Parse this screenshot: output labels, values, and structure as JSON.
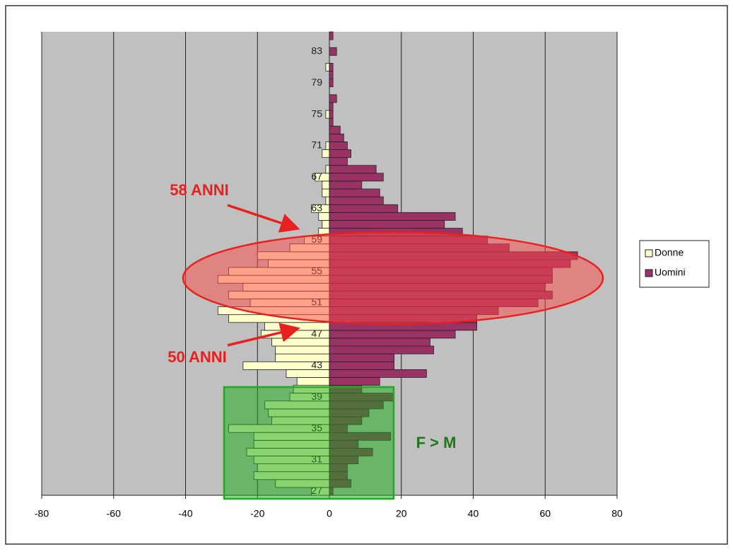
{
  "chart_data": {
    "type": "bar",
    "orientation": "horizontal",
    "categories": [
      "27",
      null,
      null,
      null,
      "31",
      null,
      null,
      null,
      "35",
      null,
      null,
      null,
      "39",
      null,
      null,
      null,
      "43",
      null,
      null,
      null,
      "47",
      null,
      null,
      null,
      "51",
      null,
      null,
      null,
      "55",
      null,
      null,
      null,
      "59",
      null,
      null,
      null,
      "63",
      null,
      null,
      null,
      "67",
      null,
      null,
      null,
      "71",
      null,
      null,
      null,
      "75",
      null,
      null,
      null,
      "79",
      null,
      null,
      null,
      "83",
      null,
      null
    ],
    "series": [
      {
        "name": "Donne",
        "color": "#ffffcc",
        "values": [
          -5,
          -15,
          -21,
          -20,
          -21,
          -23,
          -21,
          -21,
          -28,
          -16,
          -17,
          -18,
          -11,
          -10,
          -9,
          -12,
          -24,
          -15,
          -15,
          -16,
          -19,
          -18,
          -28,
          -31,
          -22,
          -28,
          -24,
          -31,
          -28,
          -17,
          -20,
          -11,
          -7,
          -3,
          -2,
          -3,
          -5,
          -1,
          -2,
          -2,
          -4,
          -1,
          0,
          -2,
          -1,
          0,
          0,
          0,
          -1,
          0,
          0,
          0,
          0,
          0,
          -1,
          0,
          0,
          0,
          0
        ]
      },
      {
        "name": "Uomini",
        "color": "#993366",
        "values": [
          1,
          6,
          5,
          5,
          8,
          12,
          8,
          17,
          5,
          9,
          11,
          15,
          18,
          9,
          14,
          27,
          18,
          18,
          29,
          28,
          35,
          41,
          41,
          47,
          58,
          62,
          60,
          62,
          62,
          67,
          69,
          50,
          44,
          37,
          32,
          35,
          19,
          15,
          14,
          9,
          15,
          13,
          5,
          6,
          5,
          4,
          3,
          1,
          1,
          1,
          2,
          0,
          1,
          1,
          1,
          0,
          2,
          0,
          1
        ]
      }
    ],
    "xlim": [
      -80,
      80
    ],
    "xticks": [
      -80,
      -60,
      -40,
      -20,
      0,
      20,
      40,
      60,
      80
    ],
    "grid": true,
    "legend": "right",
    "annotations": [
      "58 ANNI",
      "50 ANNI",
      "F > M"
    ]
  }
}
